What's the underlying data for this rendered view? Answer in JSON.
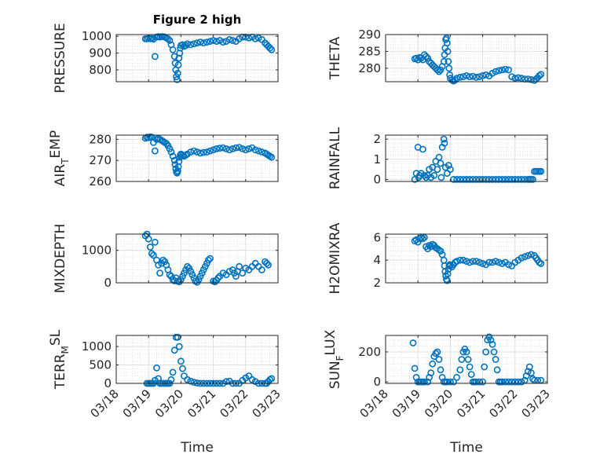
{
  "figure": {
    "title": "Figure 2 high",
    "marker_color": "#0072BD",
    "xlabel": "Time",
    "x_tick_labels": [
      "03/18",
      "03/19",
      "03/20",
      "03/21",
      "03/22",
      "03/23"
    ]
  },
  "chart_data": [
    {
      "type": "scatter",
      "ylabel": "PRESSURE",
      "xlim": [
        "03/18",
        "03/23"
      ],
      "ylim": [
        730,
        1010
      ],
      "yticks": [
        800,
        900,
        1000
      ],
      "x_day": [
        0.9,
        0.95,
        1.0,
        1.05,
        1.1,
        1.15,
        1.2,
        1.25,
        1.3,
        1.35,
        1.4,
        1.45,
        1.5,
        1.55,
        1.6,
        1.65,
        1.7,
        1.75,
        1.8,
        1.82,
        1.84,
        1.86,
        1.88,
        1.9,
        1.92,
        1.94,
        1.96,
        1.98,
        2.0,
        2.05,
        2.1,
        2.15,
        2.2,
        2.3,
        2.4,
        2.5,
        2.6,
        2.7,
        2.8,
        2.9,
        3.0,
        3.1,
        3.2,
        3.3,
        3.4,
        3.5,
        3.6,
        3.7,
        3.8,
        3.9,
        4.0,
        4.1,
        4.2,
        4.3,
        4.4,
        4.5,
        4.6,
        4.65,
        4.7,
        4.75,
        4.8
      ],
      "y": [
        985,
        985,
        988,
        985,
        987,
        983,
        880,
        995,
        998,
        995,
        998,
        998,
        995,
        990,
        985,
        975,
        950,
        920,
        880,
        840,
        800,
        760,
        742,
        780,
        830,
        870,
        900,
        930,
        945,
        950,
        940,
        945,
        955,
        950,
        955,
        960,
        965,
        960,
        965,
        970,
        975,
        970,
        975,
        965,
        970,
        980,
        975,
        970,
        985,
        995,
        995,
        990,
        995,
        985,
        990,
        980,
        960,
        950,
        940,
        930,
        920
      ]
    },
    {
      "type": "scatter",
      "ylabel": "THETA",
      "xlim": [
        "03/18",
        "03/23"
      ],
      "ylim": [
        276,
        290
      ],
      "yticks": [
        280,
        285,
        290
      ],
      "x_day": [
        0.9,
        0.95,
        1.0,
        1.05,
        1.1,
        1.15,
        1.2,
        1.25,
        1.3,
        1.35,
        1.4,
        1.45,
        1.5,
        1.55,
        1.6,
        1.65,
        1.7,
        1.75,
        1.8,
        1.82,
        1.84,
        1.86,
        1.88,
        1.9,
        1.92,
        1.94,
        1.96,
        1.98,
        2.0,
        2.05,
        2.1,
        2.15,
        2.2,
        2.3,
        2.4,
        2.5,
        2.6,
        2.7,
        2.8,
        2.9,
        3.0,
        3.1,
        3.2,
        3.3,
        3.4,
        3.5,
        3.6,
        3.7,
        3.8,
        3.9,
        4.0,
        4.1,
        4.2,
        4.3,
        4.4,
        4.5,
        4.6,
        4.65,
        4.7,
        4.75,
        4.8
      ],
      "y": [
        282.8,
        283,
        282.5,
        283.2,
        283,
        282.5,
        284,
        283.5,
        283,
        282,
        281.5,
        281,
        280.5,
        280,
        279.5,
        279,
        279.5,
        280.5,
        282,
        284,
        286,
        288.5,
        289,
        287.5,
        285,
        282,
        280,
        278,
        277,
        276.5,
        276.2,
        276.5,
        277,
        277.3,
        277.5,
        277.8,
        277.5,
        277.6,
        277.3,
        277.5,
        277.8,
        278,
        277.7,
        278.5,
        279,
        279.3,
        279.5,
        279.7,
        279.5,
        277.5,
        277,
        277.2,
        277,
        276.8,
        276.8,
        276.6,
        276.4,
        276.8,
        277.2,
        277.8,
        278.2
      ]
    },
    {
      "type": "scatter",
      "ylabel": "AIR_TEMP",
      "xlim": [
        "03/18",
        "03/23"
      ],
      "ylim": [
        260,
        282
      ],
      "yticks": [
        260,
        270,
        280
      ],
      "x_day": [
        0.9,
        0.95,
        1.0,
        1.05,
        1.1,
        1.15,
        1.2,
        1.25,
        1.3,
        1.35,
        1.4,
        1.45,
        1.5,
        1.55,
        1.6,
        1.65,
        1.7,
        1.75,
        1.8,
        1.82,
        1.84,
        1.86,
        1.88,
        1.9,
        1.92,
        1.94,
        1.96,
        1.98,
        2.0,
        2.05,
        2.1,
        2.15,
        2.2,
        2.3,
        2.4,
        2.5,
        2.6,
        2.7,
        2.8,
        2.9,
        3.0,
        3.1,
        3.2,
        3.3,
        3.4,
        3.5,
        3.6,
        3.7,
        3.8,
        3.9,
        4.0,
        4.1,
        4.2,
        4.3,
        4.4,
        4.5,
        4.6,
        4.65,
        4.7,
        4.75,
        4.8
      ],
      "y": [
        280.5,
        281,
        280.8,
        281.2,
        281,
        278.5,
        274.5,
        280,
        280.5,
        280,
        279.5,
        279,
        278.5,
        278,
        277,
        275.5,
        274,
        272,
        270,
        268,
        266,
        264.5,
        264,
        265,
        267,
        269.5,
        271.5,
        272.5,
        273,
        272.5,
        272,
        272.5,
        273,
        274,
        274.5,
        274,
        273.5,
        273.8,
        274,
        274.5,
        275,
        275.5,
        275.8,
        276,
        275.5,
        275,
        275.5,
        276,
        276.2,
        275.5,
        275,
        275.5,
        276,
        275,
        274.5,
        274,
        273.5,
        273,
        272.5,
        272,
        271.5
      ]
    },
    {
      "type": "scatter",
      "ylabel": "RAINFALL",
      "xlim": [
        "03/18",
        "03/23"
      ],
      "ylim": [
        -0.1,
        2.2
      ],
      "yticks": [
        0,
        1,
        2
      ],
      "x_day": [
        0.9,
        0.95,
        1.0,
        1.02,
        1.05,
        1.1,
        1.15,
        1.2,
        1.25,
        1.3,
        1.35,
        1.4,
        1.45,
        1.5,
        1.55,
        1.6,
        1.65,
        1.7,
        1.72,
        1.75,
        1.8,
        1.82,
        1.85,
        1.9,
        1.95,
        2.0,
        2.1,
        2.2,
        2.3,
        2.4,
        2.5,
        2.6,
        2.7,
        2.8,
        2.9,
        3.0,
        3.1,
        3.2,
        3.3,
        3.4,
        3.5,
        3.6,
        3.7,
        3.8,
        3.9,
        4.0,
        4.1,
        4.2,
        4.3,
        4.4,
        4.45,
        4.5,
        4.55,
        4.6,
        4.65,
        4.7,
        4.75,
        4.8
      ],
      "y": [
        0,
        0.3,
        1.6,
        0.1,
        0.2,
        0.3,
        1.5,
        0.2,
        0.1,
        0.2,
        0.5,
        0.1,
        0.6,
        0.2,
        0.9,
        0.5,
        1.1,
        0.8,
        0.1,
        1.6,
        2.0,
        1.8,
        0.6,
        0.3,
        0.7,
        0.5,
        0,
        0,
        0,
        0,
        0,
        0,
        0,
        0,
        0,
        0,
        0,
        0,
        0,
        0,
        0,
        0,
        0,
        0,
        0,
        0,
        0,
        0,
        0,
        0,
        0,
        0,
        0,
        0.4,
        0.4,
        0.4,
        0.4,
        0.4
      ]
    },
    {
      "type": "scatter",
      "ylabel": "MIXDEPTH",
      "xlim": [
        "03/18",
        "03/23"
      ],
      "ylim": [
        0,
        1500
      ],
      "yticks": [
        0,
        1000
      ],
      "x_day": [
        0.9,
        0.95,
        1.0,
        1.05,
        1.1,
        1.15,
        1.2,
        1.25,
        1.3,
        1.35,
        1.4,
        1.45,
        1.5,
        1.55,
        1.6,
        1.65,
        1.7,
        1.75,
        1.8,
        1.85,
        1.9,
        1.95,
        2.0,
        2.05,
        2.1,
        2.15,
        2.2,
        2.25,
        2.3,
        2.35,
        2.4,
        2.45,
        2.5,
        2.55,
        2.6,
        2.65,
        2.7,
        2.75,
        2.8,
        2.85,
        2.9,
        3.0,
        3.05,
        3.1,
        3.15,
        3.2,
        3.3,
        3.4,
        3.5,
        3.6,
        3.65,
        3.7,
        3.75,
        3.8,
        3.9,
        4.0,
        4.1,
        4.2,
        4.3,
        4.4,
        4.5,
        4.6,
        4.65,
        4.7
      ],
      "y": [
        1450,
        1500,
        1350,
        1100,
        900,
        850,
        1250,
        700,
        550,
        300,
        600,
        700,
        650,
        550,
        400,
        250,
        200,
        100,
        60,
        150,
        50,
        30,
        100,
        200,
        300,
        400,
        500,
        450,
        350,
        250,
        150,
        50,
        20,
        100,
        200,
        300,
        400,
        500,
        600,
        700,
        750,
        50,
        30,
        80,
        150,
        200,
        300,
        250,
        350,
        400,
        300,
        200,
        350,
        500,
        300,
        450,
        400,
        500,
        600,
        500,
        400,
        650,
        600,
        550
      ]
    },
    {
      "type": "scatter",
      "ylabel": "H2OMIXRA",
      "xlim": [
        "03/18",
        "03/23"
      ],
      "ylim": [
        2,
        6.3
      ],
      "yticks": [
        2,
        4,
        6
      ],
      "x_day": [
        0.9,
        0.95,
        1.0,
        1.05,
        1.1,
        1.15,
        1.2,
        1.25,
        1.3,
        1.35,
        1.4,
        1.45,
        1.5,
        1.55,
        1.6,
        1.65,
        1.7,
        1.75,
        1.8,
        1.82,
        1.84,
        1.86,
        1.88,
        1.9,
        1.92,
        1.94,
        1.96,
        1.98,
        2.0,
        2.05,
        2.1,
        2.15,
        2.2,
        2.3,
        2.4,
        2.5,
        2.6,
        2.7,
        2.8,
        2.9,
        3.0,
        3.1,
        3.2,
        3.3,
        3.4,
        3.5,
        3.6,
        3.7,
        3.8,
        3.9,
        4.0,
        4.1,
        4.2,
        4.3,
        4.4,
        4.5,
        4.6,
        4.65,
        4.7,
        4.75,
        4.8
      ],
      "y": [
        5.7,
        5.8,
        5.6,
        5.9,
        6.0,
        5.9,
        6.0,
        5.2,
        5.0,
        5.3,
        5.2,
        5.4,
        5.3,
        5.1,
        5.0,
        4.9,
        4.8,
        4.5,
        4.0,
        3.5,
        3.0,
        2.6,
        2.3,
        2.2,
        2.8,
        3.2,
        3.5,
        3.6,
        3.5,
        3.4,
        3.6,
        3.8,
        3.9,
        4.0,
        4.0,
        3.9,
        3.8,
        3.9,
        3.9,
        3.8,
        3.7,
        3.6,
        3.8,
        3.8,
        3.9,
        3.8,
        3.7,
        3.8,
        3.6,
        3.5,
        3.8,
        4.0,
        4.2,
        4.3,
        4.4,
        4.5,
        4.4,
        4.2,
        4.0,
        3.8,
        3.7
      ]
    },
    {
      "type": "scatter",
      "ylabel": "TERR_MSL",
      "xlim": [
        "03/18",
        "03/23"
      ],
      "ylim": [
        0,
        1300
      ],
      "yticks": [
        0,
        500,
        1000
      ],
      "x_day": [
        0.95,
        1.0,
        1.05,
        1.1,
        1.15,
        1.2,
        1.25,
        1.3,
        1.35,
        1.4,
        1.45,
        1.5,
        1.55,
        1.6,
        1.65,
        1.7,
        1.75,
        1.8,
        1.85,
        1.9,
        1.95,
        2.0,
        2.05,
        2.1,
        2.2,
        2.3,
        2.4,
        2.5,
        2.6,
        2.7,
        2.8,
        2.9,
        3.0,
        3.1,
        3.2,
        3.3,
        3.4,
        3.5,
        3.6,
        3.7,
        3.8,
        3.9,
        4.0,
        4.1,
        4.2,
        4.3,
        4.4,
        4.5,
        4.6,
        4.65,
        4.7,
        4.75,
        4.8
      ],
      "y": [
        0,
        0,
        0,
        0,
        0,
        80,
        420,
        130,
        0,
        0,
        0,
        0,
        0,
        0,
        0,
        100,
        300,
        900,
        1250,
        1250,
        1000,
        600,
        400,
        200,
        100,
        60,
        30,
        10,
        0,
        0,
        0,
        0,
        0,
        0,
        0,
        0,
        50,
        60,
        0,
        0,
        0,
        80,
        150,
        200,
        100,
        50,
        0,
        0,
        0,
        0,
        50,
        100,
        130
      ]
    },
    {
      "type": "scatter",
      "ylabel": "SUN_FLUX",
      "xlim": [
        "03/18",
        "03/23"
      ],
      "ylim": [
        -10,
        310
      ],
      "yticks": [
        0,
        200
      ],
      "x_day": [
        0.85,
        0.9,
        0.95,
        1.0,
        1.05,
        1.1,
        1.15,
        1.2,
        1.3,
        1.35,
        1.4,
        1.45,
        1.5,
        1.55,
        1.6,
        1.65,
        1.7,
        1.75,
        1.8,
        1.85,
        1.9,
        2.0,
        2.1,
        2.2,
        2.3,
        2.35,
        2.4,
        2.45,
        2.5,
        2.55,
        2.6,
        2.65,
        2.7,
        2.75,
        2.8,
        2.9,
        3.0,
        3.05,
        3.1,
        3.15,
        3.2,
        3.25,
        3.3,
        3.35,
        3.4,
        3.45,
        3.5,
        3.55,
        3.6,
        3.7,
        3.8,
        3.9,
        4.0,
        4.1,
        4.2,
        4.3,
        4.35,
        4.4,
        4.45,
        4.5,
        4.55,
        4.6,
        4.7,
        4.8
      ],
      "y": [
        260,
        90,
        30,
        0,
        0,
        0,
        0,
        0,
        0,
        30,
        60,
        120,
        170,
        190,
        200,
        150,
        80,
        30,
        0,
        0,
        0,
        0,
        0,
        30,
        80,
        150,
        200,
        220,
        200,
        150,
        100,
        50,
        0,
        0,
        0,
        0,
        0,
        100,
        200,
        280,
        300,
        280,
        250,
        200,
        150,
        80,
        0,
        0,
        0,
        0,
        0,
        0,
        0,
        0,
        0,
        10,
        40,
        70,
        100,
        60,
        20,
        10,
        10,
        10
      ]
    }
  ]
}
